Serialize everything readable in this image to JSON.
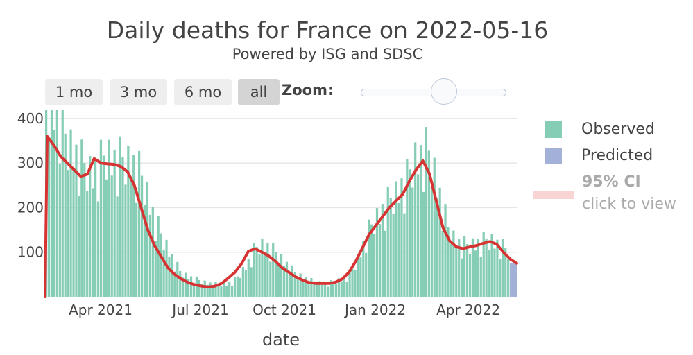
{
  "title": "Daily deaths for France on 2022-05-16",
  "subtitle": "Powered by ISG and SDSC",
  "range_buttons": [
    {
      "label": "1 mo",
      "active": false
    },
    {
      "label": "3 mo",
      "active": false
    },
    {
      "label": "6 mo",
      "active": false
    },
    {
      "label": "all",
      "active": true
    }
  ],
  "zoom_label": "Zoom:",
  "legend": {
    "observed": "Observed",
    "predicted": "Predicted",
    "ci_title": "95% CI",
    "ci_hint": "click to view"
  },
  "colors": {
    "observed": "#86cdb5",
    "predicted": "#a3b1d8",
    "fit_line": "#d63333",
    "ci": "#f8d4d4",
    "grid": "#e6e6e6"
  },
  "chart_data": {
    "type": "bar",
    "xlabel": "date",
    "ylabel": "",
    "x_ticks": [
      "Apr 2021",
      "Jul 2021",
      "Oct 2021",
      "Jan 2022",
      "Apr 2022"
    ],
    "y_ticks": [
      100,
      200,
      300,
      400
    ],
    "ylim": [
      0,
      420
    ],
    "grid": true,
    "legend_position": "right",
    "series": [
      {
        "name": "Observed",
        "kind": "bar",
        "weekly_values": [
          420,
          420,
          400,
          340,
          320,
          300,
          280,
          270,
          290,
          310,
          300,
          300,
          295,
          290,
          270,
          230,
          180,
          140,
          110,
          80,
          55,
          45,
          40,
          35,
          30,
          28,
          27,
          28,
          35,
          50,
          70,
          100,
          115,
          110,
          100,
          85,
          70,
          55,
          45,
          38,
          33,
          30,
          30,
          32,
          38,
          45,
          65,
          100,
          140,
          165,
          185,
          205,
          220,
          240,
          260,
          300,
          310,
          320,
          270,
          210,
          150,
          125,
          115,
          112,
          115,
          120,
          125,
          120,
          110,
          100
        ]
      },
      {
        "name": "Predicted",
        "kind": "bar",
        "values": [
          75
        ]
      },
      {
        "name": "fit",
        "kind": "line",
        "weekly_values": [
          360,
          340,
          315,
          300,
          285,
          270,
          275,
          310,
          300,
          298,
          297,
          292,
          280,
          250,
          200,
          150,
          115,
          90,
          65,
          50,
          40,
          32,
          27,
          24,
          22,
          24,
          30,
          42,
          55,
          75,
          102,
          108,
          100,
          92,
          80,
          65,
          55,
          45,
          38,
          32,
          30,
          30,
          30,
          33,
          40,
          55,
          80,
          110,
          140,
          160,
          180,
          200,
          215,
          230,
          260,
          285,
          305,
          275,
          215,
          155,
          125,
          112,
          108,
          112,
          115,
          120,
          124,
          118,
          100,
          85,
          75
        ]
      }
    ]
  }
}
